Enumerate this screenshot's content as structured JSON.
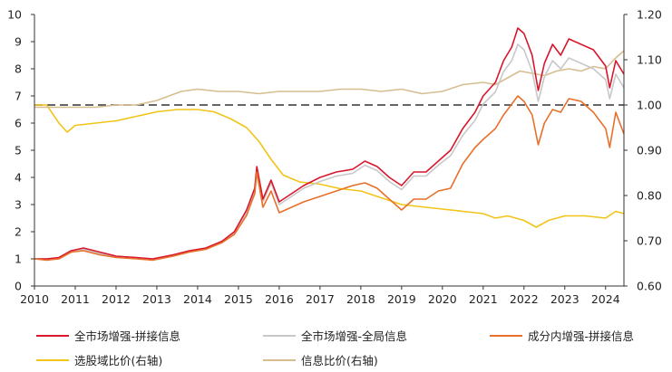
{
  "chart_data": {
    "type": "line",
    "title": "",
    "x_ticks": [
      "2010",
      "2011",
      "2012",
      "2013",
      "2014",
      "2015",
      "2016",
      "2017",
      "2018",
      "2019",
      "2020",
      "2021",
      "2022",
      "2023",
      "2024"
    ],
    "xlim": [
      2010.0,
      2024.45
    ],
    "y_left": {
      "ylim": [
        0,
        10
      ],
      "ticks": [
        "0",
        "1",
        "2",
        "3",
        "4",
        "5",
        "6",
        "7",
        "8",
        "9",
        "10"
      ]
    },
    "y_right": {
      "ylim": [
        0.6,
        1.2
      ],
      "ticks": [
        "0.60",
        "0.70",
        "0.80",
        "0.90",
        "1.00",
        "1.10",
        "1.20"
      ]
    },
    "reference_line": {
      "axis": "right",
      "value": 1.0,
      "style": "dashed",
      "color": "#333333"
    },
    "series": [
      {
        "name": "全市场增强-拼接信息",
        "axis": "left",
        "color": "#d9162c",
        "points": [
          [
            2010.0,
            1.0
          ],
          [
            2010.3,
            1.0
          ],
          [
            2010.6,
            1.05
          ],
          [
            2010.9,
            1.3
          ],
          [
            2011.2,
            1.4
          ],
          [
            2011.6,
            1.25
          ],
          [
            2012.0,
            1.1
          ],
          [
            2012.5,
            1.05
          ],
          [
            2012.9,
            1.0
          ],
          [
            2013.4,
            1.15
          ],
          [
            2013.8,
            1.3
          ],
          [
            2014.2,
            1.4
          ],
          [
            2014.6,
            1.65
          ],
          [
            2014.9,
            2.0
          ],
          [
            2015.2,
            2.8
          ],
          [
            2015.4,
            3.6
          ],
          [
            2015.45,
            4.4
          ],
          [
            2015.6,
            3.2
          ],
          [
            2015.8,
            3.9
          ],
          [
            2016.0,
            3.1
          ],
          [
            2016.3,
            3.4
          ],
          [
            2016.6,
            3.7
          ],
          [
            2017.0,
            4.0
          ],
          [
            2017.4,
            4.2
          ],
          [
            2017.8,
            4.3
          ],
          [
            2018.1,
            4.6
          ],
          [
            2018.4,
            4.4
          ],
          [
            2018.7,
            4.0
          ],
          [
            2019.0,
            3.7
          ],
          [
            2019.3,
            4.2
          ],
          [
            2019.6,
            4.2
          ],
          [
            2019.9,
            4.6
          ],
          [
            2020.2,
            5.0
          ],
          [
            2020.5,
            5.8
          ],
          [
            2020.8,
            6.4
          ],
          [
            2021.0,
            7.0
          ],
          [
            2021.3,
            7.5
          ],
          [
            2021.5,
            8.3
          ],
          [
            2021.7,
            8.8
          ],
          [
            2021.85,
            9.5
          ],
          [
            2022.0,
            9.3
          ],
          [
            2022.2,
            8.5
          ],
          [
            2022.35,
            7.2
          ],
          [
            2022.5,
            8.2
          ],
          [
            2022.7,
            8.9
          ],
          [
            2022.9,
            8.5
          ],
          [
            2023.1,
            9.1
          ],
          [
            2023.4,
            8.9
          ],
          [
            2023.7,
            8.7
          ],
          [
            2024.0,
            8.1
          ],
          [
            2024.1,
            7.3
          ],
          [
            2024.25,
            8.3
          ],
          [
            2024.45,
            7.8
          ]
        ]
      },
      {
        "name": "全市场增强-全局信息",
        "axis": "left",
        "color": "#c8c8c8",
        "points": [
          [
            2010.0,
            1.0
          ],
          [
            2010.3,
            1.0
          ],
          [
            2010.6,
            1.02
          ],
          [
            2010.9,
            1.25
          ],
          [
            2011.2,
            1.35
          ],
          [
            2011.6,
            1.2
          ],
          [
            2012.0,
            1.08
          ],
          [
            2012.5,
            1.03
          ],
          [
            2012.9,
            0.98
          ],
          [
            2013.4,
            1.12
          ],
          [
            2013.8,
            1.27
          ],
          [
            2014.2,
            1.37
          ],
          [
            2014.6,
            1.6
          ],
          [
            2014.9,
            1.95
          ],
          [
            2015.2,
            2.7
          ],
          [
            2015.4,
            3.5
          ],
          [
            2015.45,
            4.2
          ],
          [
            2015.6,
            3.1
          ],
          [
            2015.8,
            3.8
          ],
          [
            2016.0,
            3.0
          ],
          [
            2016.3,
            3.3
          ],
          [
            2016.6,
            3.6
          ],
          [
            2017.0,
            3.85
          ],
          [
            2017.4,
            4.05
          ],
          [
            2017.8,
            4.15
          ],
          [
            2018.1,
            4.45
          ],
          [
            2018.4,
            4.25
          ],
          [
            2018.7,
            3.85
          ],
          [
            2019.0,
            3.55
          ],
          [
            2019.3,
            4.05
          ],
          [
            2019.6,
            4.05
          ],
          [
            2019.9,
            4.45
          ],
          [
            2020.2,
            4.8
          ],
          [
            2020.5,
            5.55
          ],
          [
            2020.8,
            6.1
          ],
          [
            2021.0,
            6.7
          ],
          [
            2021.3,
            7.15
          ],
          [
            2021.5,
            7.9
          ],
          [
            2021.7,
            8.3
          ],
          [
            2021.85,
            8.9
          ],
          [
            2022.0,
            8.7
          ],
          [
            2022.2,
            7.9
          ],
          [
            2022.35,
            6.8
          ],
          [
            2022.5,
            7.7
          ],
          [
            2022.7,
            8.3
          ],
          [
            2022.9,
            8.0
          ],
          [
            2023.1,
            8.4
          ],
          [
            2023.4,
            8.2
          ],
          [
            2023.7,
            8.0
          ],
          [
            2024.0,
            7.6
          ],
          [
            2024.1,
            6.9
          ],
          [
            2024.25,
            7.8
          ],
          [
            2024.45,
            7.3
          ]
        ]
      },
      {
        "name": "成分内增强-拼接信息",
        "axis": "left",
        "color": "#e8702a",
        "points": [
          [
            2010.0,
            1.0
          ],
          [
            2010.3,
            0.95
          ],
          [
            2010.6,
            1.0
          ],
          [
            2010.9,
            1.25
          ],
          [
            2011.2,
            1.3
          ],
          [
            2011.6,
            1.15
          ],
          [
            2012.0,
            1.05
          ],
          [
            2012.5,
            1.0
          ],
          [
            2012.9,
            0.95
          ],
          [
            2013.4,
            1.1
          ],
          [
            2013.8,
            1.25
          ],
          [
            2014.2,
            1.35
          ],
          [
            2014.6,
            1.6
          ],
          [
            2014.9,
            1.9
          ],
          [
            2015.2,
            2.6
          ],
          [
            2015.4,
            3.4
          ],
          [
            2015.45,
            4.2
          ],
          [
            2015.6,
            2.9
          ],
          [
            2015.8,
            3.5
          ],
          [
            2016.0,
            2.7
          ],
          [
            2016.3,
            2.9
          ],
          [
            2016.6,
            3.1
          ],
          [
            2017.0,
            3.3
          ],
          [
            2017.4,
            3.5
          ],
          [
            2017.8,
            3.7
          ],
          [
            2018.1,
            3.8
          ],
          [
            2018.4,
            3.6
          ],
          [
            2018.7,
            3.2
          ],
          [
            2019.0,
            2.8
          ],
          [
            2019.3,
            3.2
          ],
          [
            2019.6,
            3.2
          ],
          [
            2019.9,
            3.5
          ],
          [
            2020.2,
            3.6
          ],
          [
            2020.5,
            4.5
          ],
          [
            2020.8,
            5.1
          ],
          [
            2021.0,
            5.4
          ],
          [
            2021.3,
            5.8
          ],
          [
            2021.5,
            6.3
          ],
          [
            2021.7,
            6.7
          ],
          [
            2021.85,
            7.0
          ],
          [
            2022.0,
            6.8
          ],
          [
            2022.2,
            6.3
          ],
          [
            2022.35,
            5.2
          ],
          [
            2022.5,
            6.0
          ],
          [
            2022.7,
            6.5
          ],
          [
            2022.9,
            6.4
          ],
          [
            2023.1,
            6.9
          ],
          [
            2023.4,
            6.8
          ],
          [
            2023.7,
            6.4
          ],
          [
            2024.0,
            5.8
          ],
          [
            2024.1,
            5.1
          ],
          [
            2024.25,
            6.4
          ],
          [
            2024.45,
            5.6
          ]
        ]
      },
      {
        "name": "选股域比价(右轴)",
        "axis": "right",
        "color": "#f2c418",
        "points": [
          [
            2010.0,
            1.0
          ],
          [
            2010.3,
            1.0
          ],
          [
            2010.6,
            0.96
          ],
          [
            2010.8,
            0.94
          ],
          [
            2011.0,
            0.955
          ],
          [
            2011.5,
            0.96
          ],
          [
            2012.0,
            0.965
          ],
          [
            2012.5,
            0.975
          ],
          [
            2013.0,
            0.985
          ],
          [
            2013.5,
            0.99
          ],
          [
            2014.0,
            0.99
          ],
          [
            2014.4,
            0.985
          ],
          [
            2014.8,
            0.97
          ],
          [
            2015.2,
            0.95
          ],
          [
            2015.5,
            0.92
          ],
          [
            2015.8,
            0.88
          ],
          [
            2016.1,
            0.845
          ],
          [
            2016.5,
            0.83
          ],
          [
            2017.0,
            0.825
          ],
          [
            2017.5,
            0.815
          ],
          [
            2018.0,
            0.81
          ],
          [
            2018.5,
            0.795
          ],
          [
            2019.0,
            0.78
          ],
          [
            2019.5,
            0.775
          ],
          [
            2020.0,
            0.77
          ],
          [
            2020.5,
            0.765
          ],
          [
            2021.0,
            0.76
          ],
          [
            2021.3,
            0.75
          ],
          [
            2021.6,
            0.755
          ],
          [
            2022.0,
            0.745
          ],
          [
            2022.3,
            0.73
          ],
          [
            2022.6,
            0.745
          ],
          [
            2023.0,
            0.755
          ],
          [
            2023.5,
            0.755
          ],
          [
            2024.0,
            0.75
          ],
          [
            2024.25,
            0.765
          ],
          [
            2024.45,
            0.76
          ]
        ]
      },
      {
        "name": "信息比价(右轴)",
        "axis": "right",
        "color": "#d7bd8f",
        "points": [
          [
            2010.0,
            0.995
          ],
          [
            2010.5,
            0.995
          ],
          [
            2011.0,
            0.995
          ],
          [
            2011.5,
            0.995
          ],
          [
            2012.0,
            1.0
          ],
          [
            2012.5,
            1.0
          ],
          [
            2013.0,
            1.01
          ],
          [
            2013.3,
            1.02
          ],
          [
            2013.6,
            1.03
          ],
          [
            2014.0,
            1.035
          ],
          [
            2014.5,
            1.03
          ],
          [
            2015.0,
            1.03
          ],
          [
            2015.5,
            1.025
          ],
          [
            2016.0,
            1.03
          ],
          [
            2016.5,
            1.03
          ],
          [
            2017.0,
            1.03
          ],
          [
            2017.5,
            1.035
          ],
          [
            2018.0,
            1.035
          ],
          [
            2018.5,
            1.03
          ],
          [
            2019.0,
            1.035
          ],
          [
            2019.5,
            1.025
          ],
          [
            2020.0,
            1.03
          ],
          [
            2020.5,
            1.045
          ],
          [
            2021.0,
            1.05
          ],
          [
            2021.3,
            1.045
          ],
          [
            2021.6,
            1.06
          ],
          [
            2021.9,
            1.075
          ],
          [
            2022.2,
            1.07
          ],
          [
            2022.5,
            1.065
          ],
          [
            2022.8,
            1.075
          ],
          [
            2023.1,
            1.08
          ],
          [
            2023.4,
            1.075
          ],
          [
            2023.7,
            1.085
          ],
          [
            2024.0,
            1.08
          ],
          [
            2024.2,
            1.1
          ],
          [
            2024.45,
            1.12
          ]
        ]
      }
    ],
    "legend": {
      "placement": "bottom"
    }
  }
}
